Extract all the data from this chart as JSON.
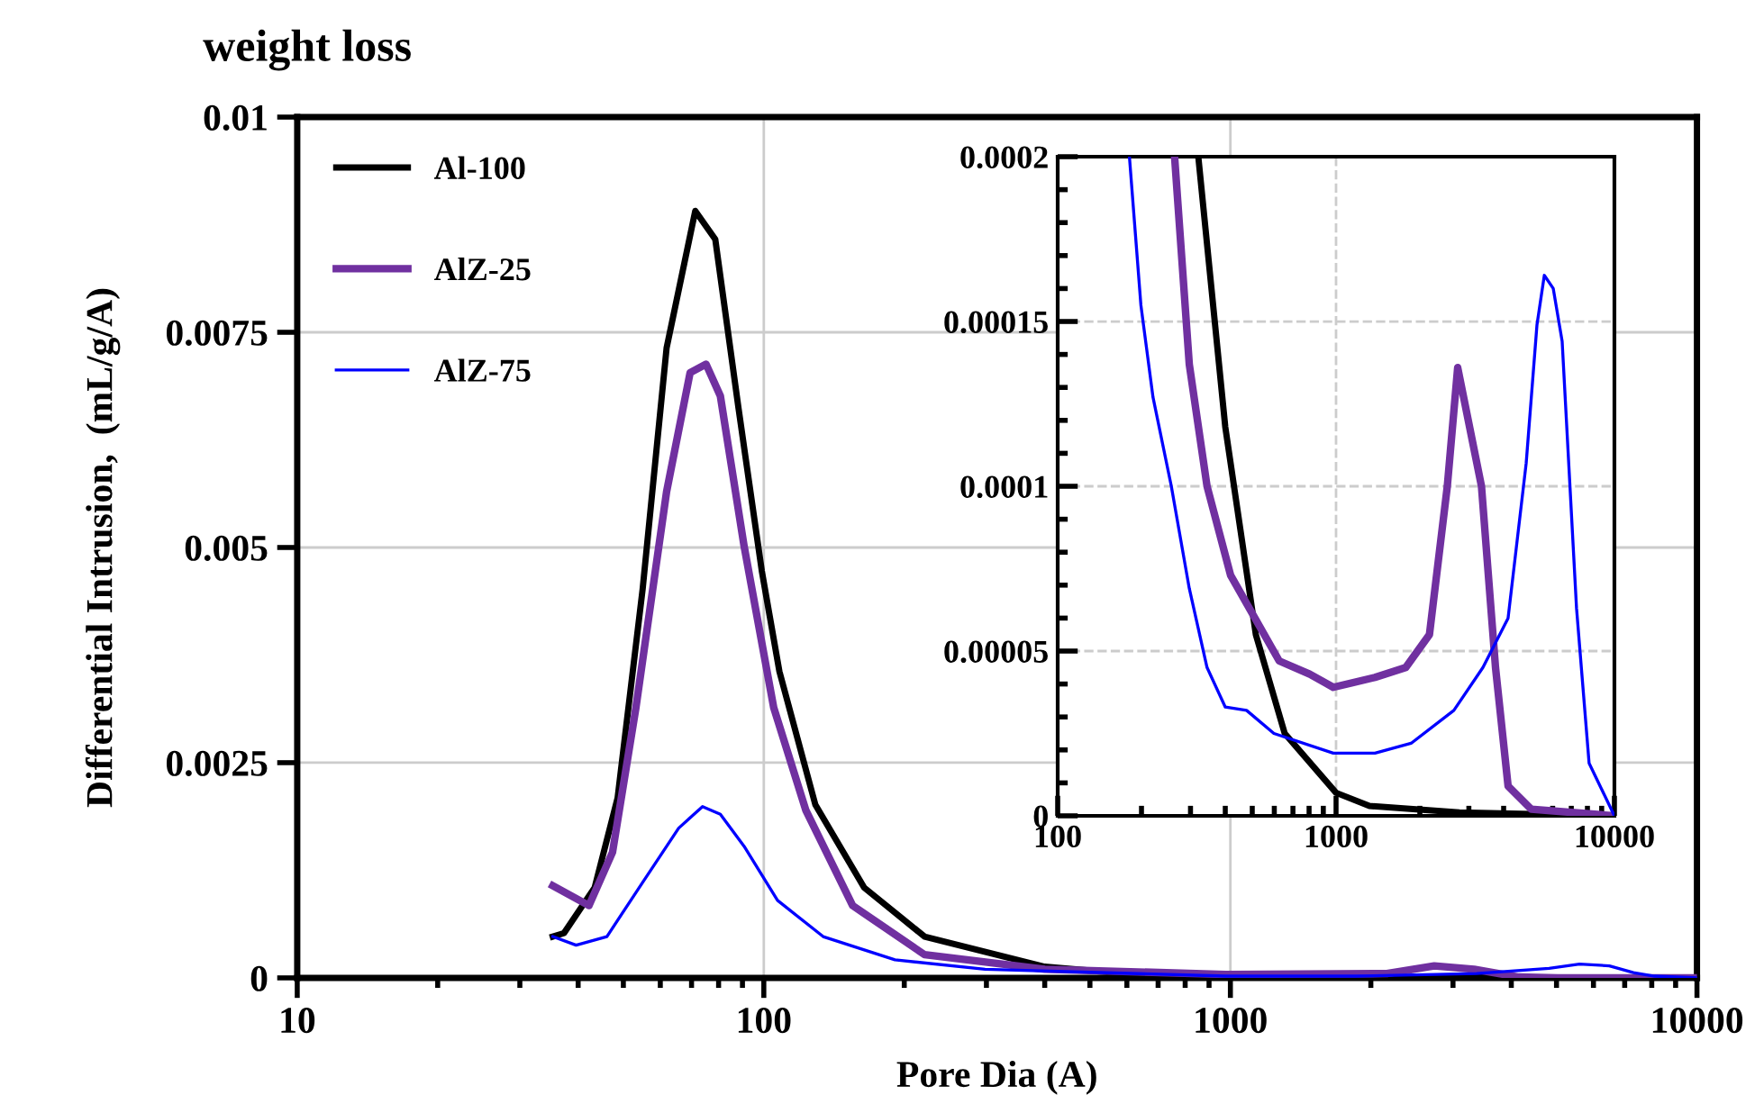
{
  "chart_data": [
    {
      "type": "line",
      "title": "weight loss",
      "xlabel": "Pore Dia (A)",
      "ylabel": "Differential Intrusion,  (mL/g/A)",
      "log": "x",
      "xlim": [
        10,
        10000
      ],
      "xticks": [
        10,
        100,
        1000,
        10000
      ],
      "ylim": [
        0,
        0.01
      ],
      "yticks": [
        0,
        0.0025,
        0.005,
        0.0075,
        0.01
      ],
      "grid": true,
      "legend": "top left",
      "marker": "none",
      "line_style": "solid",
      "series": [
        {
          "name": "Al-100",
          "color": "#000000",
          "x": [
            35.3,
            37.3,
            43.4,
            48.6,
            55,
            61.9,
            71.3,
            78.7,
            88.3,
            99,
            108,
            129,
            164,
            221,
            400,
            654,
            1000,
            10000
          ],
          "values": [
            0.00048,
            0.00052,
            0.00105,
            0.00209,
            0.00452,
            0.00732,
            0.00891,
            0.00858,
            0.00661,
            0.00473,
            0.00356,
            0.00201,
            0.00105,
            0.00048,
            0.00013,
            3e-05,
            1e-05,
            0
          ]
        },
        {
          "name": "AlZ-25",
          "color": "#7030a0",
          "x": [
            35.3,
            42.2,
            47.4,
            53.2,
            61.9,
            69.5,
            75.2,
            80.7,
            90.7,
            105,
            123,
            155,
            221,
            400,
            977,
            2165,
            2735,
            3330,
            4150,
            5030,
            10000
          ],
          "values": [
            0.00107,
            0.00084,
            0.00146,
            0.00314,
            0.00565,
            0.00703,
            0.00713,
            0.00676,
            0.00502,
            0.00314,
            0.00195,
            0.00084,
            0.00027,
            0.0001,
            4e-05,
            5e-05,
            0.00014,
            0.0001,
            1e-05,
            0,
            0
          ]
        },
        {
          "name": "AlZ-75",
          "color": "#0000ff",
          "x": [
            35.3,
            39.6,
            46.1,
            55,
            65.7,
            73.9,
            80.7,
            90.7,
            107,
            134,
            191,
            298,
            977,
            1860,
            3370,
            4820,
            5600,
            6490,
            7310,
            8110,
            10000
          ],
          "values": [
            0.00048,
            0.00038,
            0.00048,
            0.00111,
            0.00174,
            0.00199,
            0.0019,
            0.00153,
            0.0009,
            0.00048,
            0.00021,
            0.0001,
            2e-05,
            2e-05,
            5e-05,
            0.00011,
            0.00016,
            0.00014,
            6e-05,
            2e-05,
            0
          ]
        }
      ]
    },
    {
      "type": "line",
      "log": "x",
      "xlim": [
        100,
        10000
      ],
      "xticks": [
        100,
        1000,
        10000
      ],
      "ylim": [
        0,
        0.0002
      ],
      "yticks": [
        {
          "value": 0,
          "label": "0"
        },
        {
          "value": 5e-05,
          "label": "0.00005"
        },
        {
          "value": 0.0001,
          "label": "0.0001"
        },
        {
          "value": 0.00015,
          "label": "0.00015"
        },
        {
          "value": 0.0002,
          "label": "0.0002"
        }
      ],
      "grid": true,
      "marker": "none",
      "line_style": "solid",
      "series": [
        {
          "color": "#000000",
          "x": [
            320,
            400,
            515,
            654,
            1000,
            1318,
            2775,
            10000
          ],
          "values": [
            0.0002,
            0.000118,
            5.5e-05,
            2.5e-05,
            7e-06,
            3e-06,
            1e-06,
            0
          ]
        },
        {
          "color": "#7030a0",
          "x": [
            263,
            297,
            344,
            418,
            625,
            804,
            977,
            1380,
            1780,
            2165,
            2510,
            2735,
            3330,
            3740,
            4150,
            5030,
            10000
          ],
          "values": [
            0.0002,
            0.000137,
            0.0001,
            7.3e-05,
            4.7e-05,
            4.3e-05,
            3.9e-05,
            4.2e-05,
            4.5e-05,
            5.5e-05,
            0.0001,
            0.000136,
            0.0001,
            4.5e-05,
            9e-06,
            2e-06,
            0
          ]
        },
        {
          "color": "#0000ff",
          "x": [
            181,
            199,
            220,
            256,
            297,
            344,
            400,
            477,
            598,
            977,
            1380,
            1860,
            2650,
            3370,
            4150,
            4820,
            5270,
            5600,
            6030,
            6490,
            7310,
            8110,
            10000
          ],
          "values": [
            0.0002,
            0.000155,
            0.000127,
            0.0001,
            6.9e-05,
            4.5e-05,
            3.3e-05,
            3.2e-05,
            2.5e-05,
            1.9e-05,
            1.9e-05,
            2.2e-05,
            3.2e-05,
            4.5e-05,
            6e-05,
            0.000107,
            0.000149,
            0.000164,
            0.00016,
            0.000144,
            6.3e-05,
            1.6e-05,
            0
          ]
        }
      ]
    }
  ]
}
